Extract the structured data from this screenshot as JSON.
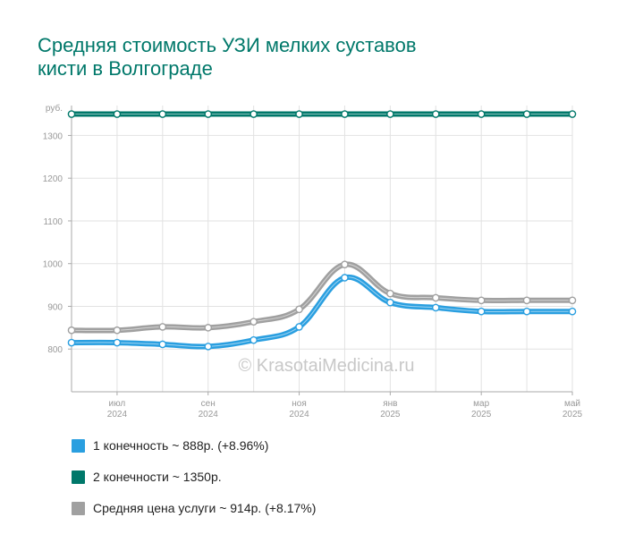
{
  "title": {
    "line1": "Средняя стоимость УЗИ мелких суставов",
    "line2": "кисти в Волгограде"
  },
  "watermark": "© KrasotaiMedicina.ru",
  "chart_data": {
    "type": "line",
    "ylabel": "руб.",
    "ylim": [
      700,
      1370
    ],
    "y_ticks": [
      800,
      900,
      1000,
      1100,
      1200,
      1300
    ],
    "grid": true,
    "legend_position": "bottom-left",
    "x_ticks": [
      {
        "i": 1,
        "month": "июл",
        "year": "2024"
      },
      {
        "i": 3,
        "month": "сен",
        "year": "2024"
      },
      {
        "i": 5,
        "month": "ноя",
        "year": "2024"
      },
      {
        "i": 7,
        "month": "янв",
        "year": "2025"
      },
      {
        "i": 9,
        "month": "мар",
        "year": "2025"
      },
      {
        "i": 11,
        "month": "май",
        "year": "2025"
      }
    ],
    "series": [
      {
        "name": "2 конечности",
        "color": "#00786a",
        "values": [
          1350,
          1350,
          1350,
          1350,
          1350,
          1350,
          1350,
          1350,
          1350,
          1350,
          1350,
          1350
        ]
      },
      {
        "name": "Средняя цена услуги",
        "color": "#a0a0a0",
        "values": [
          844,
          844,
          852,
          850,
          864,
          893,
          998,
          930,
          920,
          914,
          914,
          914
        ]
      },
      {
        "name": "1 конечность",
        "color": "#2a9fe0",
        "values": [
          815,
          815,
          811,
          806,
          821,
          852,
          967,
          909,
          897,
          888,
          888,
          888
        ]
      }
    ]
  },
  "legend": [
    {
      "label": "1 конечность ~ 888р. (+8.96%)",
      "color": "#2a9fe0"
    },
    {
      "label": "2 конечности ~ 1350р.",
      "color": "#00786a"
    },
    {
      "label": "Средняя цена услуги ~ 914р. (+8.17%)",
      "color": "#a0a0a0"
    }
  ]
}
